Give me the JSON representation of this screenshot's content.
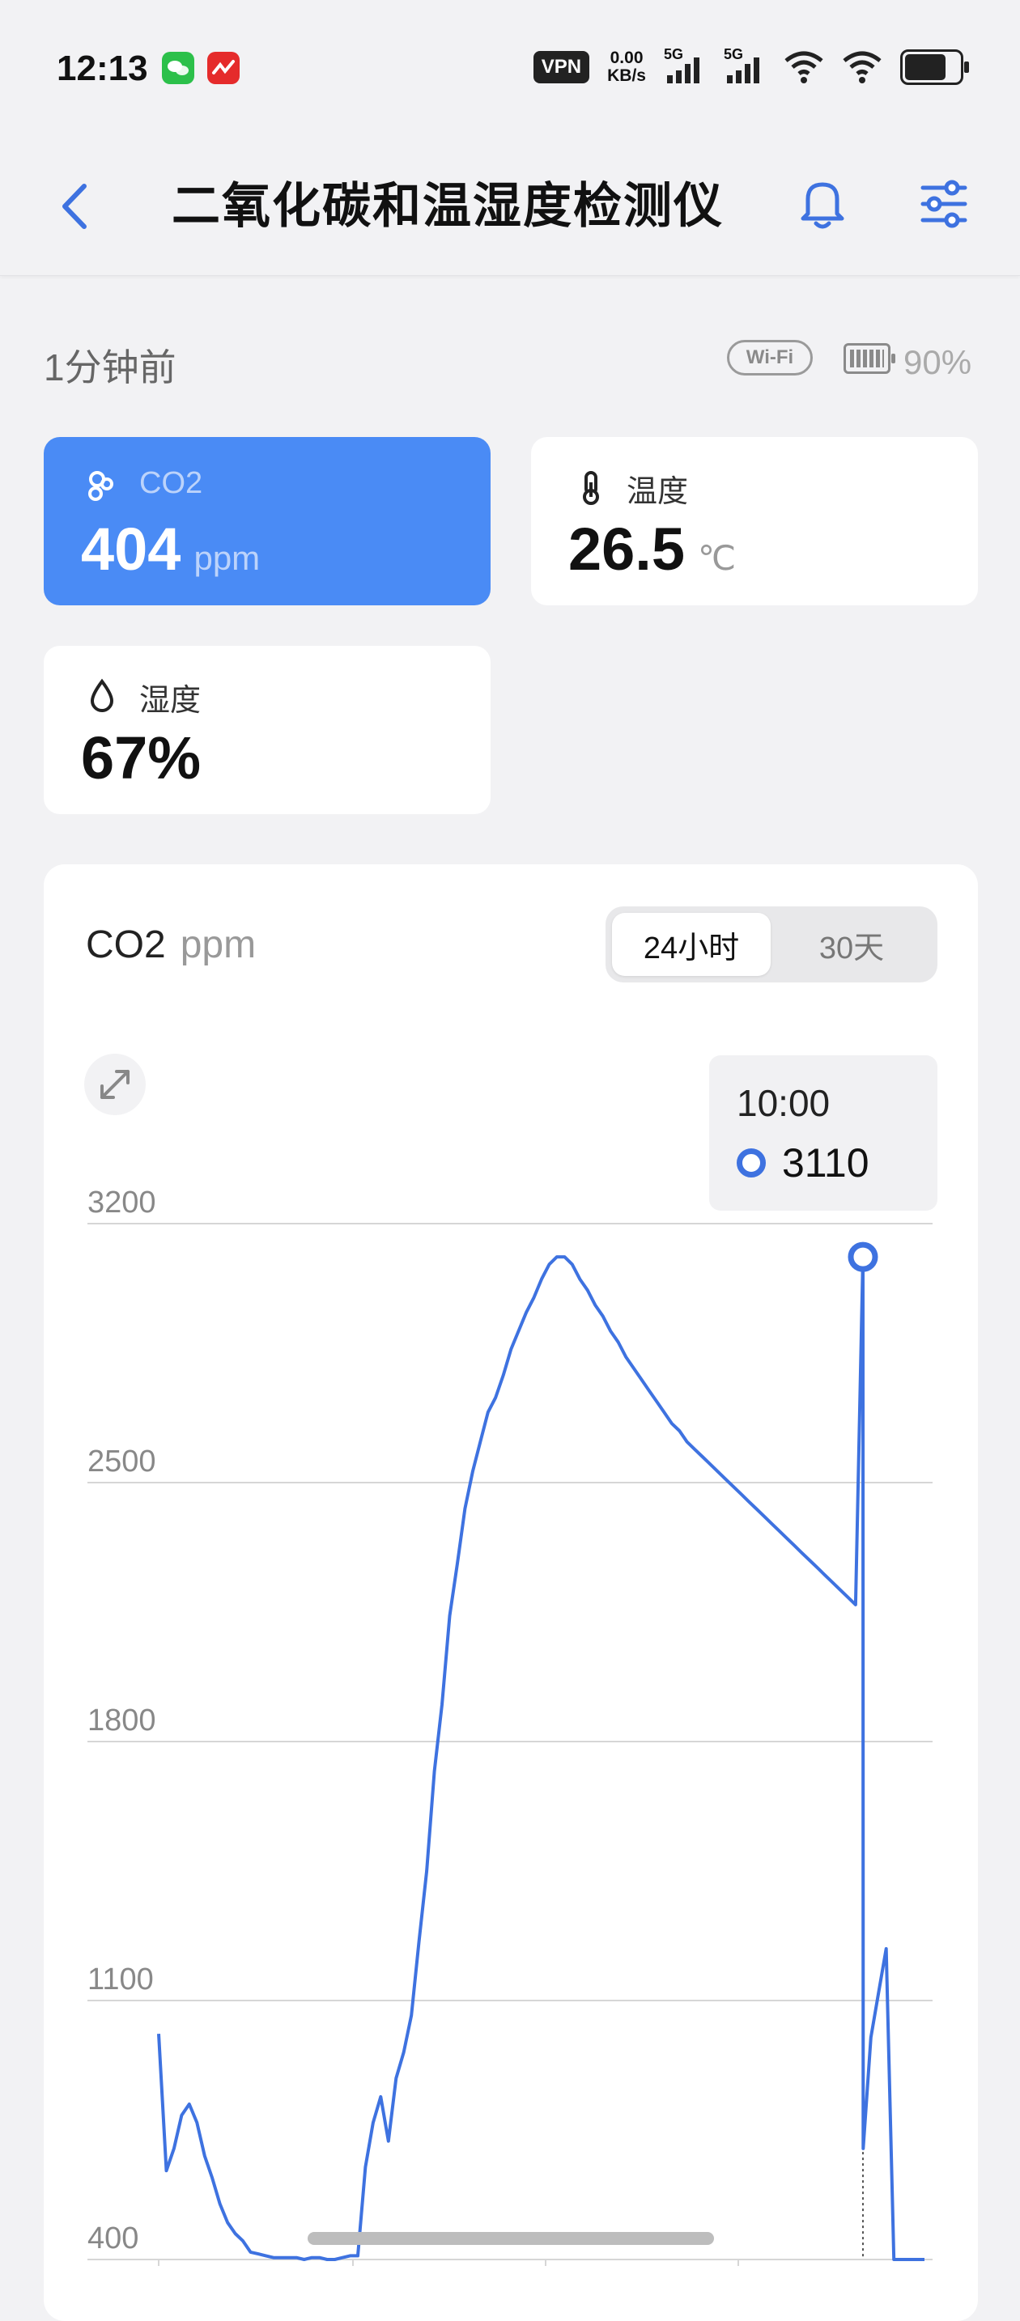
{
  "status_bar": {
    "time": "12:13",
    "vpn": "VPN",
    "speed_value": "0.00",
    "speed_unit": "KB/s",
    "net1": "5G",
    "net2": "5G"
  },
  "header": {
    "title": "二氧化碳和温湿度检测仪"
  },
  "info": {
    "updated": "1分钟前",
    "wifi": "Wi-Fi",
    "battery": "90%"
  },
  "cards": {
    "co2": {
      "label": "CO2",
      "value": "404",
      "unit": "ppm"
    },
    "temp": {
      "label": "温度",
      "value": "26.5",
      "unit": "℃"
    },
    "humidity": {
      "label": "湿度",
      "value": "67%"
    }
  },
  "panel": {
    "title": "CO2",
    "unit": "ppm",
    "tabs": [
      "24小时",
      "30天"
    ],
    "selected_tab": "24小时",
    "tooltip": {
      "time": "10:00",
      "value": "3110"
    }
  },
  "colors": {
    "accent": "#4a8bf5",
    "line": "#3e72e0"
  },
  "chart_data": {
    "type": "line",
    "ylim": [
      400,
      3200
    ],
    "yticks": [
      3200,
      2500,
      1800,
      1100,
      400
    ],
    "xlim": [
      0,
      100
    ],
    "series": [
      {
        "x": [
          0,
          1,
          2,
          3,
          4,
          5,
          6,
          7,
          8,
          9,
          10,
          11,
          12,
          13,
          14,
          15,
          16,
          17,
          18,
          19,
          20,
          21,
          22,
          23,
          24,
          25,
          26,
          27,
          28,
          29,
          30,
          31,
          32,
          33,
          34,
          35,
          36,
          37,
          38,
          39,
          40,
          41,
          42,
          43,
          44,
          45,
          46,
          47,
          48,
          49,
          50,
          51,
          52,
          53,
          54,
          55,
          56,
          57,
          58,
          59,
          60,
          61,
          62,
          63,
          64,
          65,
          66,
          67,
          68,
          69,
          70,
          71,
          72,
          73,
          74,
          75,
          76,
          77,
          78,
          79,
          80,
          81,
          82,
          83,
          84,
          85,
          86,
          87,
          88,
          89,
          90,
          91,
          91.5,
          92,
          93,
          94,
          95,
          96,
          97,
          98,
          99,
          100
        ],
        "y": [
          1010,
          640,
          700,
          790,
          820,
          770,
          680,
          620,
          550,
          500,
          470,
          450,
          420,
          415,
          410,
          405,
          405,
          405,
          405,
          400,
          405,
          405,
          400,
          400,
          405,
          410,
          410,
          650,
          770,
          840,
          720,
          890,
          960,
          1060,
          1260,
          1450,
          1720,
          1900,
          2140,
          2280,
          2430,
          2530,
          2610,
          2690,
          2730,
          2790,
          2860,
          2910,
          2960,
          3000,
          3050,
          3090,
          3110,
          3110,
          3090,
          3050,
          3020,
          2980,
          2950,
          2910,
          2880,
          2840,
          2810,
          2780,
          2750,
          2720,
          2690,
          2660,
          2640,
          2610,
          2590,
          2570,
          2550,
          2530,
          2510,
          2490,
          2470,
          2450,
          2430,
          2410,
          2390,
          2370,
          2350,
          2330,
          2310,
          2290,
          2270,
          2250,
          2230,
          2210,
          2190,
          2170,
          3110,
          700,
          1000,
          1120,
          1240,
          400,
          400,
          400,
          400,
          400
        ],
        "note_marker": "10:00"
      }
    ]
  }
}
